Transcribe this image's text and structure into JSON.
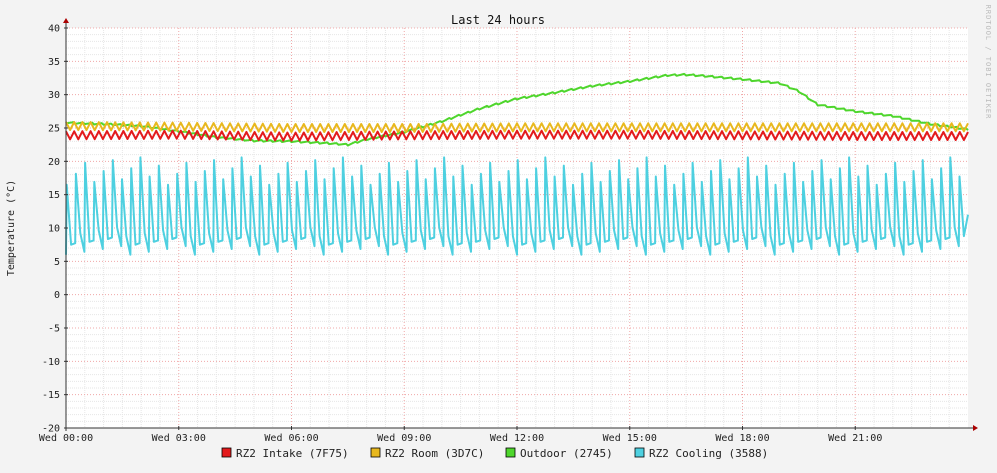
{
  "chart_data": {
    "type": "line",
    "title": "Last 24 hours",
    "ylabel": "Temperature (°C)",
    "xlabel": "",
    "watermark": "RRDTOOL / TOBI OETIKER",
    "ylim": [
      -20,
      40
    ],
    "y_ticks": [
      "40",
      "35",
      "30",
      "25",
      "20",
      "15",
      "10",
      "5",
      "0",
      "-5",
      "-10",
      "-15",
      "-20"
    ],
    "xlim_hours": [
      0,
      24
    ],
    "x_ticks": [
      "Wed 00:00",
      "Wed 03:00",
      "Wed 06:00",
      "Wed 09:00",
      "Wed 12:00",
      "Wed 15:00",
      "Wed 18:00",
      "Wed 21:00"
    ],
    "grid": true,
    "legend_position": "bottom-center",
    "series": [
      {
        "name": "RZ2 Intake (7F75)",
        "color": "#e31a1c",
        "x_hours": [
          0,
          3,
          6,
          9,
          12,
          15,
          18,
          21,
          24
        ],
        "values": [
          23.9,
          24.0,
          23.7,
          23.9,
          24.0,
          24.0,
          23.9,
          23.8,
          23.8
        ],
        "oscillation": 0.6
      },
      {
        "name": "RZ2 Room (3D7C)",
        "color": "#e8b81e",
        "x_hours": [
          0,
          3,
          6,
          9,
          12,
          15,
          18,
          21,
          24
        ],
        "values": [
          25.3,
          25.2,
          25.0,
          25.0,
          25.1,
          25.1,
          25.1,
          25.1,
          25.1
        ],
        "oscillation": 0.6
      },
      {
        "name": "Outdoor (2745)",
        "color": "#4ed62c",
        "x_hours": [
          0,
          1,
          2,
          3,
          4,
          5,
          6,
          7,
          7.5,
          8,
          9,
          10,
          11,
          12,
          13,
          14,
          15,
          16,
          16.5,
          17,
          18,
          19,
          19.5,
          20,
          21,
          22,
          23,
          24
        ],
        "values": [
          25.8,
          25.6,
          25.3,
          24.5,
          23.6,
          23.1,
          23.0,
          22.7,
          22.5,
          23.3,
          24.4,
          26.0,
          27.9,
          29.4,
          30.3,
          31.3,
          32.0,
          32.9,
          33.0,
          32.8,
          32.3,
          31.7,
          30.5,
          28.5,
          27.5,
          26.8,
          25.6,
          24.8
        ]
      },
      {
        "name": "RZ2 Cooling (3588)",
        "color": "#4ed0e0",
        "x_hours": [
          0,
          24
        ],
        "values": [
          12.5,
          12.5
        ],
        "min": 5.5,
        "max": 21.0,
        "cycles": 98
      }
    ]
  }
}
